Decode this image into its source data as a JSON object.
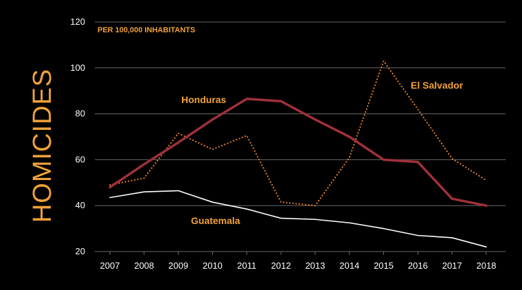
{
  "chart_data": {
    "type": "line",
    "subtitle": "PER 100,000 INHABITANTS",
    "ylabel": "HOMICIDES",
    "xlabel": "",
    "x": [
      "2007",
      "2008",
      "2009",
      "2010",
      "2011",
      "2012",
      "2013",
      "2014",
      "2015",
      "2016",
      "2017",
      "2018"
    ],
    "ylim": [
      20,
      120
    ],
    "yticks": [
      20,
      40,
      60,
      80,
      100,
      120
    ],
    "grid": true,
    "series": [
      {
        "name": "Honduras",
        "color": "#a0303a",
        "style": "solid-thick",
        "values": [
          48,
          58,
          67.5,
          77.5,
          86.5,
          85.5,
          77.5,
          70,
          60,
          59,
          43,
          40
        ]
      },
      {
        "name": "El Salvador",
        "color": "#e07a28",
        "style": "dotted",
        "values": [
          49,
          52,
          71.5,
          64.5,
          70.5,
          41.5,
          40,
          61,
          103,
          82,
          60.5,
          51
        ]
      },
      {
        "name": "Guatemala",
        "color": "#ffffff",
        "style": "solid-thin",
        "values": [
          43.5,
          46,
          46.5,
          41.5,
          38.5,
          34.5,
          34,
          32.5,
          30,
          27,
          26,
          22
        ]
      }
    ]
  }
}
